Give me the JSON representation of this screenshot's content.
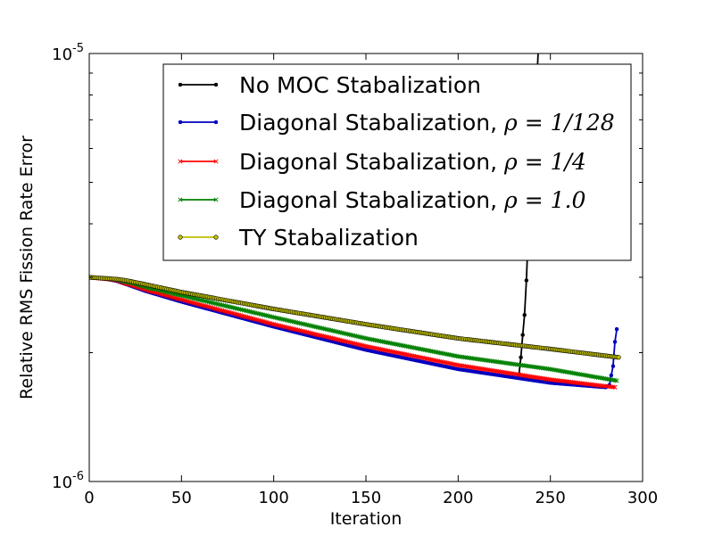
{
  "chart_data": {
    "type": "line",
    "title": "",
    "xlabel": "Iteration",
    "ylabel": "Relative RMS Fission Rate Error",
    "xlim": [
      0,
      300
    ],
    "ylim": [
      1e-06,
      1e-05
    ],
    "yscale": "log",
    "x_tick_labels": [
      "0",
      "50",
      "100",
      "150",
      "200",
      "250",
      "300"
    ],
    "y_tick_labels": [
      {
        "base": "10",
        "exp": "-6"
      },
      {
        "base": "10",
        "exp": "-5"
      }
    ],
    "grid": false,
    "legend_position": "top-right",
    "series": [
      {
        "name": "No MOC Stabalization",
        "color": "#000000",
        "marker": "dot",
        "x": [
          233,
          234,
          235,
          236,
          237,
          238,
          240,
          242,
          244
        ],
        "y": [
          1.78e-06,
          1.95e-06,
          2.2e-06,
          2.45e-06,
          2.95e-06,
          3.8e-06,
          5.2e-06,
          7.5e-06,
          1.15e-05
        ]
      },
      {
        "name": "Diagonal Stabalization, ρ = 1/128",
        "legend_prefix": "Diagonal Stabalization, ",
        "legend_math": "ρ = 1/128",
        "color": "#0000bf",
        "marker": "dot",
        "x": [
          0,
          10,
          15,
          20,
          30,
          50,
          100,
          150,
          200,
          250,
          280,
          282,
          283,
          284,
          285,
          286
        ],
        "y": [
          3e-06,
          2.97e-06,
          2.94e-06,
          2.89e-06,
          2.79e-06,
          2.63e-06,
          2.3e-06,
          2.03e-06,
          1.83e-06,
          1.7e-06,
          1.66e-06,
          1.68e-06,
          1.77e-06,
          1.86e-06,
          2.12e-06,
          2.27e-06
        ]
      },
      {
        "name": "Diagonal Stabalization, ρ = 1/4",
        "legend_prefix": "Diagonal Stabalization, ",
        "legend_math": "ρ = 1/4",
        "color": "#ff0000",
        "marker": "x",
        "x": [
          0,
          10,
          15,
          20,
          30,
          50,
          100,
          150,
          200,
          250,
          285
        ],
        "y": [
          3e-06,
          2.97e-06,
          2.95e-06,
          2.9e-06,
          2.81e-06,
          2.66e-06,
          2.33e-06,
          2.07e-06,
          1.87e-06,
          1.73e-06,
          1.66e-06
        ]
      },
      {
        "name": "Diagonal Stabalization, ρ = 1.0",
        "legend_prefix": "Diagonal Stabalization, ",
        "legend_math": "ρ = 1.0",
        "color": "#008000",
        "marker": "x",
        "x": [
          0,
          10,
          15,
          20,
          30,
          50,
          100,
          150,
          200,
          250,
          286
        ],
        "y": [
          3e-06,
          2.98e-06,
          2.96e-06,
          2.93e-06,
          2.85e-06,
          2.72e-06,
          2.42e-06,
          2.16e-06,
          1.96e-06,
          1.83e-06,
          1.72e-06
        ]
      },
      {
        "name": "TY Stabalization",
        "color": "#bfbf00",
        "marker_face": "#bfbf00",
        "marker_edge": "#000000",
        "marker": "circle",
        "x": [
          0,
          10,
          15,
          20,
          30,
          50,
          100,
          150,
          200,
          250,
          287
        ],
        "y": [
          3e-06,
          2.98e-06,
          2.97e-06,
          2.95e-06,
          2.89e-06,
          2.77e-06,
          2.53e-06,
          2.33e-06,
          2.16e-06,
          2.04e-06,
          1.95e-06
        ]
      }
    ]
  }
}
